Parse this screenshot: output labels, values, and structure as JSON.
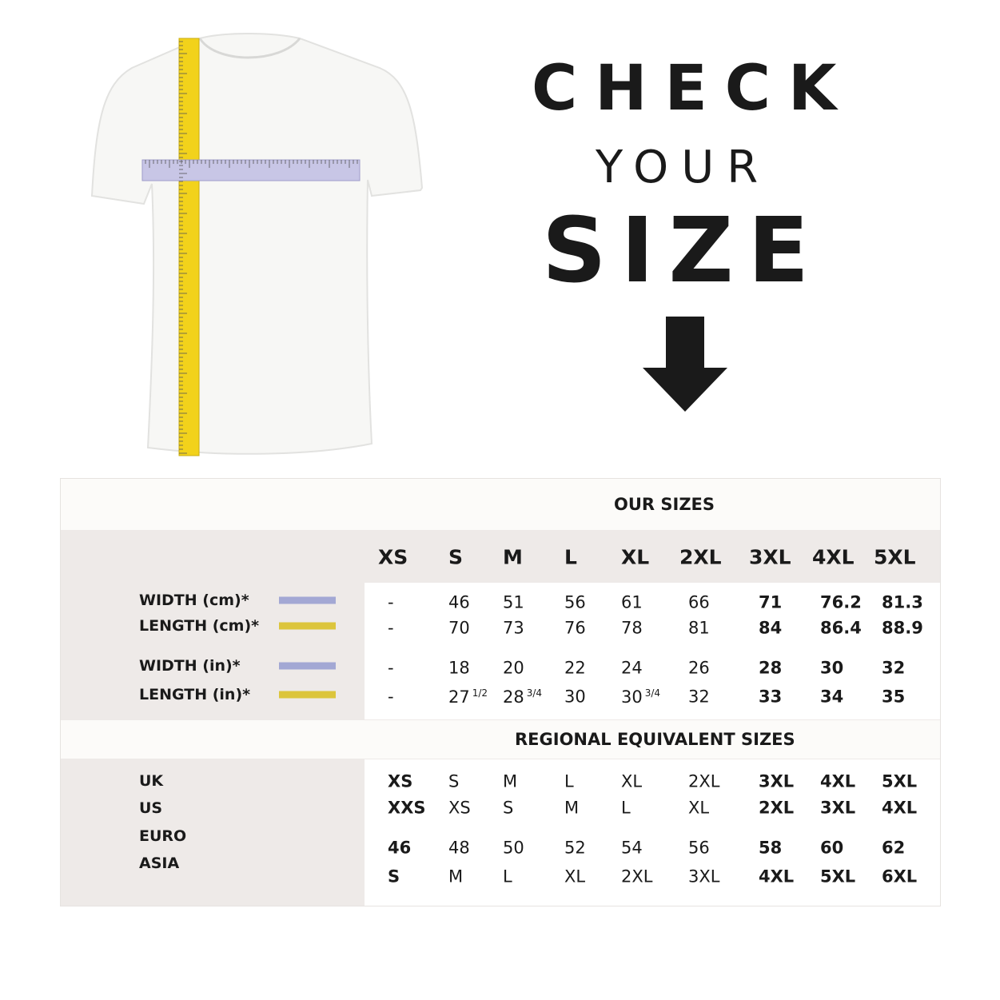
{
  "title": {
    "line1": "CHECK",
    "line2": "YOUR",
    "line3": "SIZE"
  },
  "icons": {
    "arrow": "arrow-down-icon",
    "product": "tshirt-with-tape-measure"
  },
  "colors": {
    "width_swatch": "#a3a8d4",
    "length_swatch": "#dcc53c",
    "band": "#fcfbf9",
    "panel": "#eeeae8"
  },
  "our_sizes": {
    "heading": "OUR SIZES",
    "sizes": [
      "XS",
      "S",
      "M",
      "L",
      "XL",
      "2XL",
      "3XL",
      "4XL",
      "5XL"
    ],
    "rows": [
      {
        "label": "WIDTH (cm)*",
        "swatch": "width",
        "values": [
          {
            "v": "-"
          },
          {
            "v": "46"
          },
          {
            "v": "51"
          },
          {
            "v": "56"
          },
          {
            "v": "61"
          },
          {
            "v": "66"
          },
          {
            "v": "71"
          },
          {
            "v": "76.2"
          },
          {
            "v": "81.3"
          }
        ]
      },
      {
        "label": "LENGTH (cm)*",
        "swatch": "length",
        "values": [
          {
            "v": "-"
          },
          {
            "v": "70"
          },
          {
            "v": "73"
          },
          {
            "v": "76"
          },
          {
            "v": "78"
          },
          {
            "v": "81"
          },
          {
            "v": "84"
          },
          {
            "v": "86.4"
          },
          {
            "v": "88.9"
          }
        ]
      },
      {
        "label": "WIDTH (in)*",
        "swatch": "width",
        "values": [
          {
            "v": "-"
          },
          {
            "v": "18"
          },
          {
            "v": "20"
          },
          {
            "v": "22"
          },
          {
            "v": "24"
          },
          {
            "v": "26"
          },
          {
            "v": "28"
          },
          {
            "v": "30"
          },
          {
            "v": "32"
          }
        ]
      },
      {
        "label": "LENGTH (in)*",
        "swatch": "length",
        "values": [
          {
            "v": "-"
          },
          {
            "v": "27",
            "sup": "1/2"
          },
          {
            "v": "28",
            "sup": "3/4"
          },
          {
            "v": "30"
          },
          {
            "v": "30",
            "sup": "3/4"
          },
          {
            "v": "32"
          },
          {
            "v": "33"
          },
          {
            "v": "34"
          },
          {
            "v": "35"
          }
        ]
      }
    ]
  },
  "regional": {
    "heading": "REGIONAL EQUIVALENT SIZES",
    "labels": [
      "UK",
      "US",
      "EURO",
      "ASIA"
    ],
    "rows": [
      [
        "XS",
        "S",
        "M",
        "L",
        "XL",
        "2XL",
        "3XL",
        "4XL",
        "5XL"
      ],
      [
        "XXS",
        "XS",
        "S",
        "M",
        "L",
        "XL",
        "2XL",
        "3XL",
        "4XL"
      ],
      [
        "46",
        "48",
        "50",
        "52",
        "54",
        "56",
        "58",
        "60",
        "62"
      ],
      [
        "S",
        "M",
        "L",
        "XL",
        "2XL",
        "3XL",
        "4XL",
        "5XL",
        "6XL"
      ]
    ]
  }
}
